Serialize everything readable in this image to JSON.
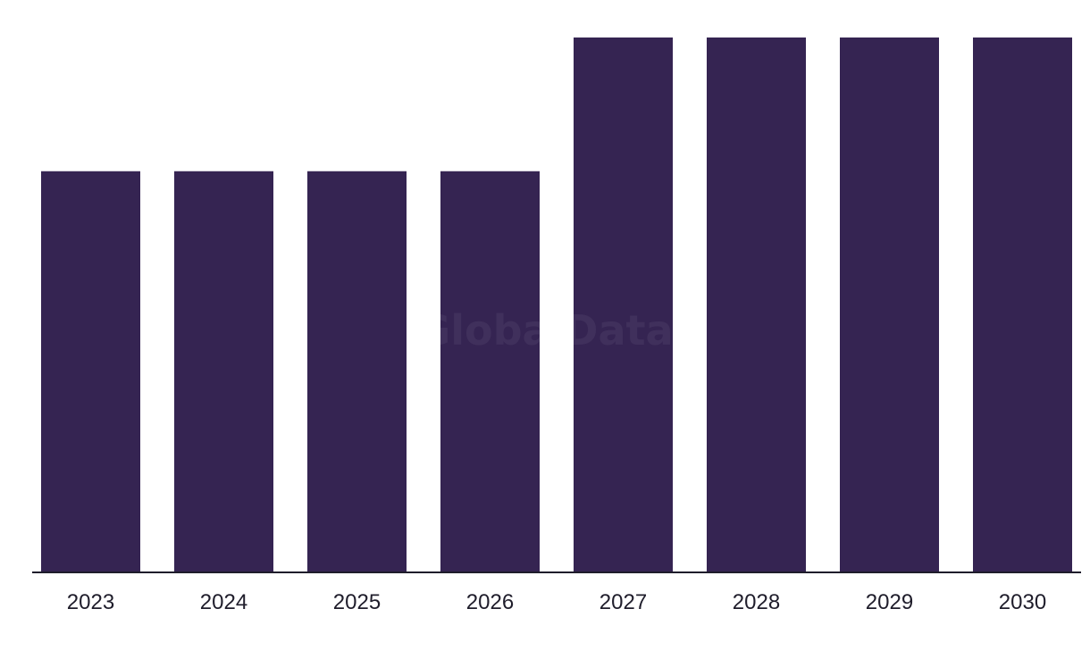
{
  "watermark": "GlobalData",
  "colors": {
    "bar": "#352452",
    "axis": "#1f1d2b",
    "tick_text": "#1f1d2b"
  },
  "chart_data": {
    "type": "bar",
    "title": "",
    "xlabel": "",
    "ylabel": "",
    "categories": [
      "2023",
      "2024",
      "2025",
      "2026",
      "2027",
      "2028",
      "2029",
      "2030"
    ],
    "values": [
      3,
      3,
      3,
      3,
      4,
      4,
      4,
      4
    ],
    "ylim": [
      0,
      4
    ],
    "grid": false,
    "legend": "none",
    "y_axis_labels_shown": false
  }
}
